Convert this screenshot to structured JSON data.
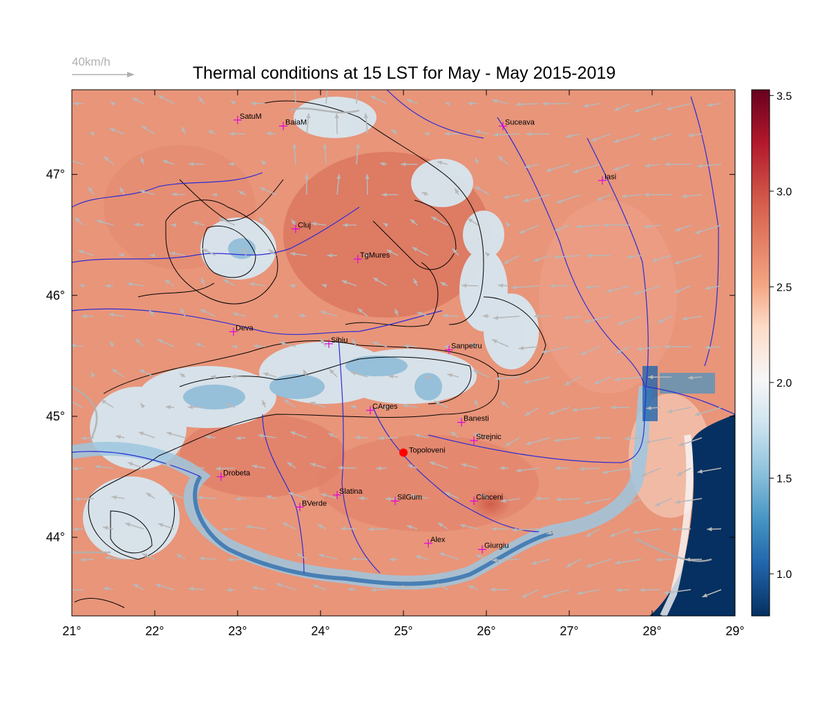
{
  "title": "Thermal conditions at 15 LST for May - May  2015-2019",
  "wind_legend": {
    "label": "40km/h",
    "color": "#b0b0b0"
  },
  "lon_ticks": [
    "21°",
    "22°",
    "23°",
    "24°",
    "25°",
    "26°",
    "27°",
    "28°",
    "29°"
  ],
  "lat_ticks": [
    "47°",
    "46°",
    "45°",
    "44°"
  ],
  "colorbar": {
    "ticks": [
      "3.5",
      "3.0",
      "2.5",
      "2.0",
      "1.5",
      "1.0"
    ],
    "colors": [
      "#67001f",
      "#b2182b",
      "#d6604d",
      "#f4a582",
      "#fddbc7",
      "#f7f7f7",
      "#d1e5f0",
      "#92c5de",
      "#4393c3",
      "#2166ac",
      "#053061"
    ]
  },
  "stations": [
    {
      "name": "SatuM",
      "lon": 23.0,
      "lat": 47.45
    },
    {
      "name": "BaiaM",
      "lon": 23.55,
      "lat": 47.4
    },
    {
      "name": "Suceava",
      "lon": 26.2,
      "lat": 47.4
    },
    {
      "name": "Iasi",
      "lon": 27.4,
      "lat": 46.95
    },
    {
      "name": "Cluj",
      "lon": 23.7,
      "lat": 46.55
    },
    {
      "name": "TgMures",
      "lon": 24.45,
      "lat": 46.3
    },
    {
      "name": "Deva",
      "lon": 22.95,
      "lat": 45.7
    },
    {
      "name": "Sibiu",
      "lon": 24.1,
      "lat": 45.6
    },
    {
      "name": "Sanpetru",
      "lon": 25.55,
      "lat": 45.55
    },
    {
      "name": "CArges",
      "lon": 24.6,
      "lat": 45.05
    },
    {
      "name": "Banesti",
      "lon": 25.7,
      "lat": 44.95
    },
    {
      "name": "Strejnic",
      "lon": 25.85,
      "lat": 44.8
    },
    {
      "name": "Topoloveni",
      "lon": 25.0,
      "lat": 44.7,
      "highlight": true
    },
    {
      "name": "Drobeta",
      "lon": 22.8,
      "lat": 44.5
    },
    {
      "name": "Slatina",
      "lon": 24.2,
      "lat": 44.35
    },
    {
      "name": "BVerde",
      "lon": 23.75,
      "lat": 44.25
    },
    {
      "name": "SilGum",
      "lon": 24.9,
      "lat": 44.3
    },
    {
      "name": "Clinceni",
      "lon": 25.85,
      "lat": 44.3
    },
    {
      "name": "Alex",
      "lon": 25.3,
      "lat": 43.95
    },
    {
      "name": "Giurgiu",
      "lon": 25.95,
      "lat": 43.9
    }
  ]
}
